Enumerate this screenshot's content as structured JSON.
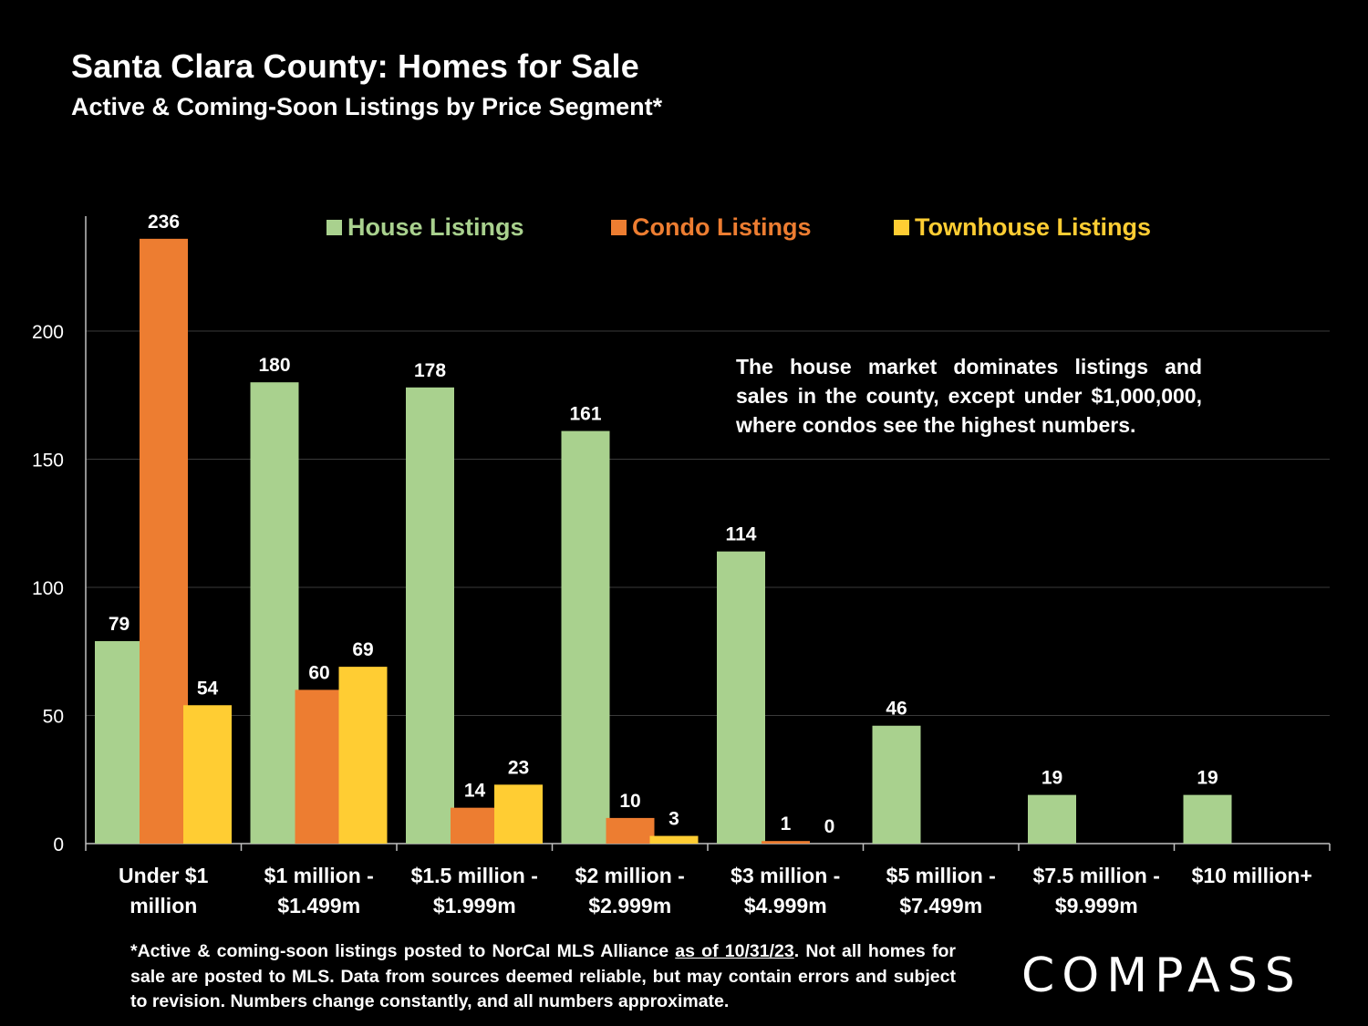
{
  "title": "Santa Clara County: Homes for Sale",
  "subtitle": "Active & Coming-Soon Listings by Price Segment*",
  "annotation": "The house market dominates listings and sales in the county, except under $1,000,000, where condos see the highest numbers.",
  "footnote": {
    "before": "*Active & coming-soon listings posted to NorCal MLS Alliance ",
    "underlined": "as of 10/31/23",
    "after": ". Not all homes for sale are posted to MLS. Data from sources deemed reliable, but may contain errors and subject to revision. Numbers change constantly, and all numbers approximate."
  },
  "logo": "COMPASS",
  "chart_data": {
    "type": "bar",
    "title": "Santa Clara County: Homes for Sale",
    "subtitle": "Active & Coming-Soon Listings by Price Segment*",
    "xlabel": "",
    "ylabel": "",
    "ylim": [
      0,
      236
    ],
    "yticks": [
      0,
      50,
      100,
      150,
      200
    ],
    "grid": true,
    "legend_position": "top",
    "categories": [
      [
        "Under $1",
        "million"
      ],
      [
        "$1 million -",
        "$1.499m"
      ],
      [
        "$1.5 million -",
        "$1.999m"
      ],
      [
        "$2 million -",
        "$2.999m"
      ],
      [
        "$3 million -",
        "$4.999m"
      ],
      [
        "$5 million -",
        "$7.499m"
      ],
      [
        "$7.5 million -",
        "$9.999m"
      ],
      [
        "$10 million+"
      ]
    ],
    "series": [
      {
        "name": "House Listings",
        "color": "#a9d18e",
        "values": [
          79,
          180,
          178,
          161,
          114,
          46,
          19,
          19
        ]
      },
      {
        "name": "Condo Listings",
        "color": "#ed7d31",
        "values": [
          236,
          60,
          14,
          10,
          1,
          null,
          null,
          null
        ]
      },
      {
        "name": "Townhouse Listings",
        "color": "#ffcd33",
        "values": [
          54,
          69,
          23,
          3,
          0,
          null,
          null,
          null
        ]
      }
    ]
  }
}
